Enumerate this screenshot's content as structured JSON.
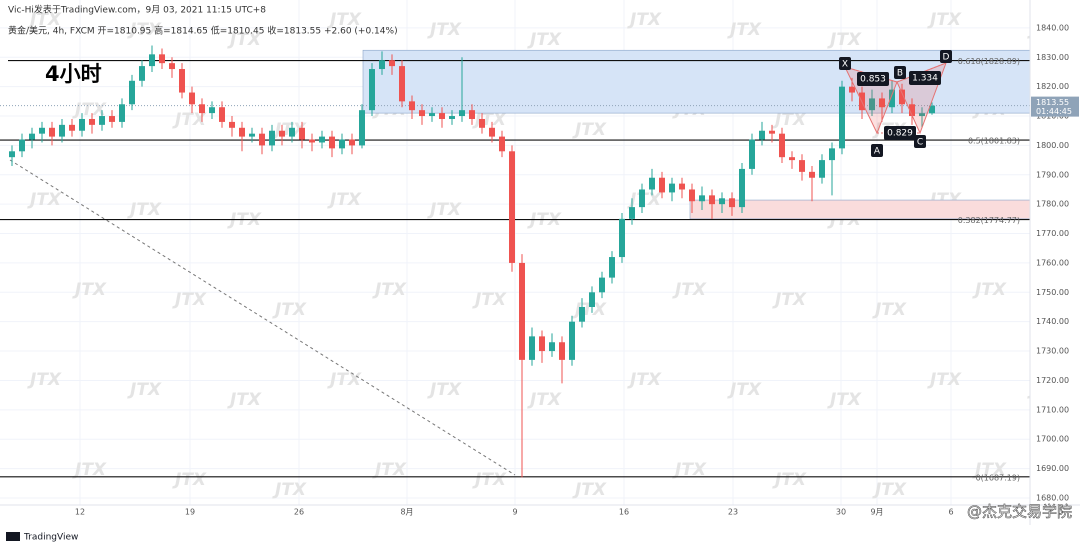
{
  "chart_data": {
    "type": "candlestick",
    "header": "Vic-Hi发表于TradingView.com，9月 03, 2021 11:15 UTC+8",
    "symbol_line": "黄金/美元, 4h, FXCM  开=1810.95  高=1814.65  低=1810.45  收=1813.55  +2.60 (+0.14%)",
    "timeframe_label": "4小时",
    "watermark": "JTX",
    "brand": "TradingView",
    "credit": "@杰克交易学院",
    "up_color": "#26a69a",
    "down_color": "#ef5350",
    "grid": true,
    "ylim": [
      1677.6,
      1849.5
    ],
    "yticks": [
      {
        "value": 1680,
        "label": "1680.00"
      },
      {
        "value": 1690,
        "label": "1690.00"
      },
      {
        "value": 1700,
        "label": "1700.00"
      },
      {
        "value": 1710,
        "label": "1710.00"
      },
      {
        "value": 1720,
        "label": "1720.00"
      },
      {
        "value": 1730,
        "label": "1730.00"
      },
      {
        "value": 1740,
        "label": "1740.00"
      },
      {
        "value": 1750,
        "label": "1750.00"
      },
      {
        "value": 1760,
        "label": "1760.00"
      },
      {
        "value": 1770,
        "label": "1770.00"
      },
      {
        "value": 1780,
        "label": "1780.00"
      },
      {
        "value": 1790,
        "label": "1790.00"
      },
      {
        "value": 1800,
        "label": "1800.00"
      },
      {
        "value": 1810,
        "label": "1810.00"
      },
      {
        "value": 1820,
        "label": "1820.00"
      },
      {
        "value": 1830,
        "label": "1830.00"
      },
      {
        "value": 1840,
        "label": "1840.00"
      }
    ],
    "xticks": [
      {
        "value": 6.8,
        "label": "12"
      },
      {
        "value": 17.8,
        "label": "19"
      },
      {
        "value": 28.7,
        "label": "26"
      },
      {
        "value": 39.5,
        "label": "8月"
      },
      {
        "value": 50.3,
        "label": "9"
      },
      {
        "value": 61.2,
        "label": "16"
      },
      {
        "value": 72.1,
        "label": "23"
      },
      {
        "value": 82.9,
        "label": "30"
      },
      {
        "value": 86.5,
        "label": "9月"
      },
      {
        "value": 93.9,
        "label": "6"
      }
    ],
    "last_price": 1813.55,
    "countdown": "01:44:45",
    "levels": [
      {
        "value": 1828.89,
        "label": "0.618(1828.89)"
      },
      {
        "value": 1801.83,
        "label": "0.5(1801.83)"
      },
      {
        "value": 1774.77,
        "label": "0.382(1774.77)"
      },
      {
        "value": 1687.19,
        "label": "0(1687.19)"
      }
    ],
    "zones": [
      {
        "from": 1811,
        "to": 1832.4,
        "color": "#d6e4f7"
      },
      {
        "from": 1775,
        "to": 1781.4,
        "color": "#fadcdc"
      }
    ],
    "pattern": {
      "points": [
        "X",
        "A",
        "B",
        "C",
        "D"
      ],
      "ratios": [
        "0.853",
        "1.334",
        "0.829"
      ]
    },
    "ohlc": [
      [
        1796,
        1800,
        1793,
        1798
      ],
      [
        1798,
        1804,
        1796,
        1802
      ],
      [
        1802,
        1806,
        1799,
        1804
      ],
      [
        1804,
        1808,
        1801,
        1806
      ],
      [
        1806,
        1808,
        1800,
        1803
      ],
      [
        1803,
        1809,
        1801,
        1807
      ],
      [
        1807,
        1809,
        1803,
        1805
      ],
      [
        1805,
        1811,
        1803,
        1809
      ],
      [
        1809,
        1811,
        1804,
        1807
      ],
      [
        1807,
        1812,
        1805,
        1810
      ],
      [
        1810,
        1812,
        1806,
        1808
      ],
      [
        1808,
        1816,
        1806,
        1814
      ],
      [
        1814,
        1824,
        1812,
        1822
      ],
      [
        1822,
        1829,
        1820,
        1827
      ],
      [
        1827,
        1834,
        1825,
        1831
      ],
      [
        1831,
        1833,
        1826,
        1828
      ],
      [
        1828,
        1830,
        1823,
        1826
      ],
      [
        1826,
        1828,
        1816,
        1818
      ],
      [
        1818,
        1820,
        1811,
        1814
      ],
      [
        1814,
        1816,
        1808,
        1811
      ],
      [
        1811,
        1815,
        1809,
        1813
      ],
      [
        1813,
        1815,
        1806,
        1808
      ],
      [
        1808,
        1810,
        1803,
        1806
      ],
      [
        1806,
        1808,
        1798,
        1803
      ],
      [
        1803,
        1806,
        1801,
        1804
      ],
      [
        1804,
        1806,
        1797,
        1800
      ],
      [
        1800,
        1807,
        1798,
        1805
      ],
      [
        1805,
        1807,
        1800,
        1803
      ],
      [
        1803,
        1808,
        1801,
        1806
      ],
      [
        1806,
        1808,
        1799,
        1802
      ],
      [
        1802,
        1804,
        1798,
        1801
      ],
      [
        1801,
        1805,
        1799,
        1803
      ],
      [
        1803,
        1805,
        1796,
        1799
      ],
      [
        1799,
        1804,
        1797,
        1802
      ],
      [
        1802,
        1804,
        1797,
        1800
      ],
      [
        1800,
        1814,
        1799,
        1812
      ],
      [
        1812,
        1828,
        1810,
        1826
      ],
      [
        1826,
        1832,
        1824,
        1829
      ],
      [
        1829,
        1831,
        1824,
        1827
      ],
      [
        1827,
        1829,
        1813,
        1815
      ],
      [
        1815,
        1817,
        1809,
        1812
      ],
      [
        1812,
        1814,
        1807,
        1810
      ],
      [
        1810,
        1813,
        1808,
        1811
      ],
      [
        1811,
        1813,
        1806,
        1809
      ],
      [
        1809,
        1812,
        1807,
        1810
      ],
      [
        1810,
        1830,
        1808,
        1812
      ],
      [
        1812,
        1814,
        1807,
        1809
      ],
      [
        1809,
        1811,
        1804,
        1806
      ],
      [
        1806,
        1808,
        1801,
        1803
      ],
      [
        1803,
        1805,
        1796,
        1798
      ],
      [
        1798,
        1800,
        1757,
        1760
      ],
      [
        1760,
        1763,
        1687,
        1727
      ],
      [
        1727,
        1738,
        1725,
        1735
      ],
      [
        1735,
        1737,
        1726,
        1730
      ],
      [
        1730,
        1736,
        1728,
        1733
      ],
      [
        1733,
        1735,
        1719,
        1727
      ],
      [
        1727,
        1742,
        1725,
        1740
      ],
      [
        1740,
        1748,
        1738,
        1745
      ],
      [
        1745,
        1752,
        1743,
        1750
      ],
      [
        1750,
        1757,
        1748,
        1755
      ],
      [
        1755,
        1764,
        1753,
        1762
      ],
      [
        1762,
        1777,
        1760,
        1775
      ],
      [
        1775,
        1782,
        1773,
        1779
      ],
      [
        1779,
        1787,
        1777,
        1785
      ],
      [
        1785,
        1792,
        1783,
        1789
      ],
      [
        1789,
        1791,
        1782,
        1784
      ],
      [
        1784,
        1789,
        1781,
        1787
      ],
      [
        1787,
        1789,
        1782,
        1785
      ],
      [
        1785,
        1787,
        1777,
        1781
      ],
      [
        1781,
        1786,
        1778,
        1783
      ],
      [
        1783,
        1785,
        1775,
        1780
      ],
      [
        1780,
        1784,
        1777,
        1782
      ],
      [
        1782,
        1784,
        1776,
        1779
      ],
      [
        1779,
        1794,
        1777,
        1792
      ],
      [
        1792,
        1804,
        1790,
        1802
      ],
      [
        1802,
        1808,
        1800,
        1805
      ],
      [
        1805,
        1807,
        1801,
        1804
      ],
      [
        1804,
        1806,
        1794,
        1796
      ],
      [
        1796,
        1798,
        1792,
        1795
      ],
      [
        1795,
        1797,
        1788,
        1791
      ],
      [
        1791,
        1793,
        1781,
        1789
      ],
      [
        1789,
        1797,
        1787,
        1795
      ],
      [
        1795,
        1801,
        1783,
        1799
      ],
      [
        1799,
        1822,
        1797,
        1820
      ],
      [
        1820,
        1823,
        1815,
        1818
      ],
      [
        1818,
        1820,
        1809,
        1812
      ],
      [
        1812,
        1819,
        1810,
        1816
      ],
      [
        1816,
        1818,
        1808,
        1813
      ],
      [
        1813,
        1822,
        1811,
        1819
      ],
      [
        1819,
        1821,
        1811,
        1814
      ],
      [
        1814,
        1816,
        1807,
        1810
      ],
      [
        1810,
        1813,
        1806,
        1810.95
      ],
      [
        1810.95,
        1814.65,
        1810.45,
        1813.55
      ]
    ]
  }
}
